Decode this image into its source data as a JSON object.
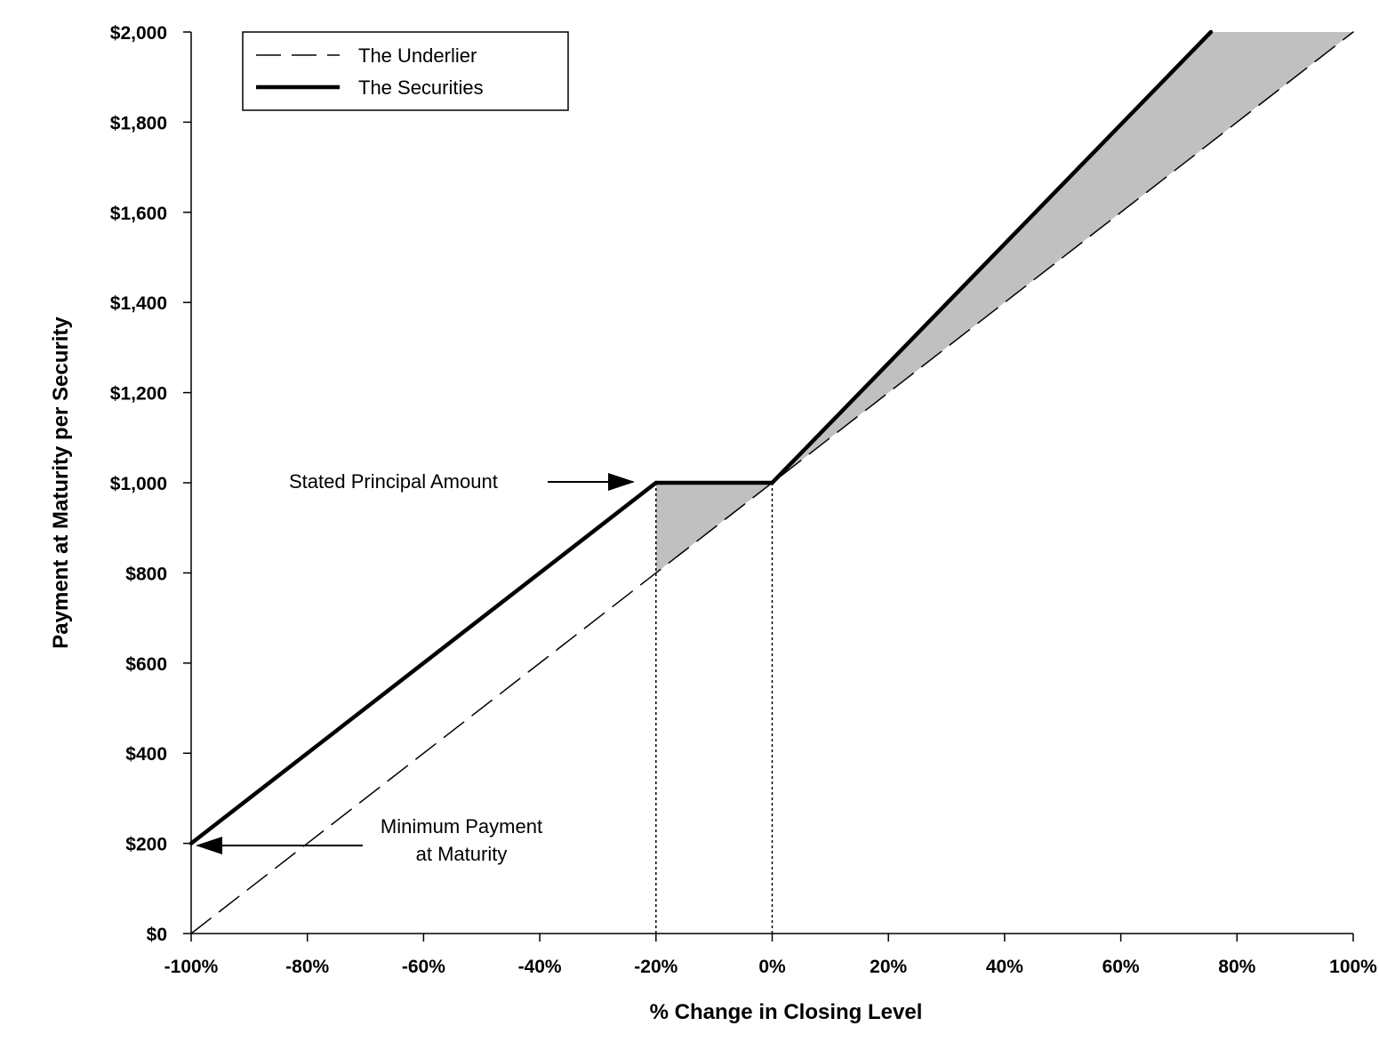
{
  "chart_data": {
    "type": "line",
    "xlabel": "% Change in Closing Level",
    "ylabel": "Payment at Maturity per Security",
    "xlim": [
      -100,
      100
    ],
    "ylim": [
      0,
      2000
    ],
    "x_ticks": [
      -100,
      -80,
      -60,
      -40,
      -20,
      0,
      20,
      40,
      60,
      80,
      100
    ],
    "x_tick_labels": [
      "-100%",
      "-80%",
      "-60%",
      "-40%",
      "-20%",
      "0%",
      "20%",
      "40%",
      "60%",
      "80%",
      "100%"
    ],
    "y_ticks": [
      0,
      200,
      400,
      600,
      800,
      1000,
      1200,
      1400,
      1600,
      1800,
      2000
    ],
    "y_tick_labels": [
      "$0",
      "$200",
      "$400",
      "$600",
      "$800",
      "$1,000",
      "$1,200",
      "$1,400",
      "$1,600",
      "$1,800",
      "$2,000"
    ],
    "grid": false,
    "legend_position": "top-left",
    "series": [
      {
        "name": "The Underlier",
        "style": "dashed",
        "color": "#000000",
        "x": [
          -100,
          100
        ],
        "y": [
          0,
          2000
        ]
      },
      {
        "name": "The Securities",
        "style": "solid-thick",
        "color": "#000000",
        "x": [
          -100,
          -20,
          0,
          75.5
        ],
        "y": [
          200,
          1000,
          1000,
          2000
        ]
      }
    ],
    "shaded_regions": [
      {
        "color": "#c0c0c0",
        "x": [
          -20,
          0,
          -20
        ],
        "y": [
          1000,
          1000,
          800
        ]
      },
      {
        "color": "#c0c0c0",
        "x": [
          0,
          75.5,
          100
        ],
        "y": [
          1000,
          2000,
          2000
        ]
      }
    ],
    "reference_lines": [
      {
        "x": -20
      },
      {
        "x": 0
      }
    ],
    "annotations": [
      {
        "text": "Stated Principal Amount",
        "points_to": [
          -20,
          1000
        ]
      },
      {
        "text_lines": [
          "Minimum Payment",
          "at Maturity"
        ],
        "points_to": [
          -100,
          200
        ]
      }
    ]
  }
}
